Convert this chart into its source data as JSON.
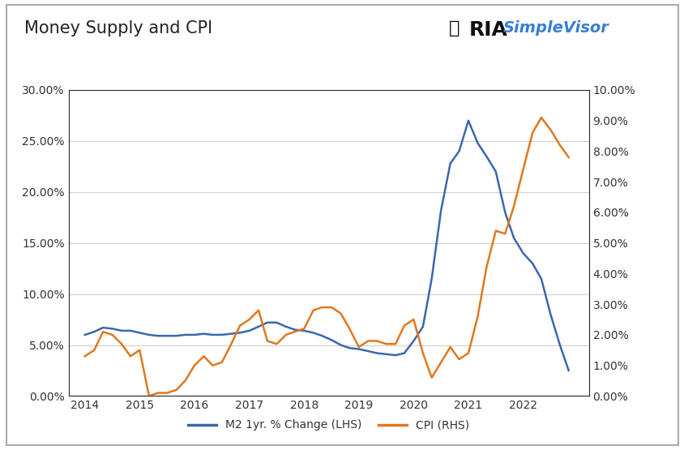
{
  "title": "Money Supply and CPI",
  "background_color": "#ffffff",
  "grid_color": "#d0d0d0",
  "m2_color": "#3a68ae",
  "cpi_color": "#e07820",
  "lhs_ylim": [
    0.0,
    0.3
  ],
  "rhs_ylim": [
    0.0,
    0.1
  ],
  "lhs_yticks": [
    0.0,
    0.05,
    0.1,
    0.15,
    0.2,
    0.25,
    0.3
  ],
  "rhs_yticks": [
    0.0,
    0.01,
    0.02,
    0.03,
    0.04,
    0.05,
    0.06,
    0.07,
    0.08,
    0.09,
    0.1
  ],
  "legend_m2": "M2 1yr. % Change (LHS)",
  "legend_cpi": "CPI (RHS)",
  "xlim": [
    2013.7,
    2023.2
  ],
  "xticks": [
    2014,
    2015,
    2016,
    2017,
    2018,
    2019,
    2020,
    2021,
    2022
  ],
  "m2_x": [
    2014.0,
    2014.17,
    2014.33,
    2014.5,
    2014.67,
    2014.83,
    2015.0,
    2015.17,
    2015.33,
    2015.5,
    2015.67,
    2015.83,
    2016.0,
    2016.17,
    2016.33,
    2016.5,
    2016.67,
    2016.83,
    2017.0,
    2017.17,
    2017.33,
    2017.5,
    2017.67,
    2017.83,
    2018.0,
    2018.17,
    2018.33,
    2018.5,
    2018.67,
    2018.83,
    2019.0,
    2019.17,
    2019.33,
    2019.5,
    2019.67,
    2019.83,
    2020.0,
    2020.17,
    2020.33,
    2020.5,
    2020.67,
    2020.83,
    2021.0,
    2021.17,
    2021.33,
    2021.5,
    2021.67,
    2021.83,
    2022.0,
    2022.17,
    2022.33,
    2022.5,
    2022.67,
    2022.83
  ],
  "m2_y": [
    0.06,
    0.063,
    0.067,
    0.066,
    0.064,
    0.064,
    0.062,
    0.06,
    0.059,
    0.059,
    0.059,
    0.06,
    0.06,
    0.061,
    0.06,
    0.06,
    0.061,
    0.062,
    0.064,
    0.068,
    0.072,
    0.072,
    0.068,
    0.065,
    0.064,
    0.062,
    0.059,
    0.055,
    0.05,
    0.047,
    0.046,
    0.044,
    0.042,
    0.041,
    0.04,
    0.042,
    0.054,
    0.068,
    0.115,
    0.182,
    0.228,
    0.24,
    0.27,
    0.248,
    0.235,
    0.22,
    0.18,
    0.155,
    0.14,
    0.13,
    0.115,
    0.08,
    0.05,
    0.025
  ],
  "cpi_x": [
    2014.0,
    2014.17,
    2014.33,
    2014.5,
    2014.67,
    2014.83,
    2015.0,
    2015.17,
    2015.33,
    2015.5,
    2015.67,
    2015.83,
    2016.0,
    2016.17,
    2016.33,
    2016.5,
    2016.67,
    2016.83,
    2017.0,
    2017.17,
    2017.33,
    2017.5,
    2017.67,
    2017.83,
    2018.0,
    2018.17,
    2018.33,
    2018.5,
    2018.67,
    2018.83,
    2019.0,
    2019.17,
    2019.33,
    2019.5,
    2019.67,
    2019.83,
    2020.0,
    2020.17,
    2020.33,
    2020.5,
    2020.67,
    2020.83,
    2021.0,
    2021.17,
    2021.33,
    2021.5,
    2021.67,
    2021.83,
    2022.0,
    2022.17,
    2022.33,
    2022.5,
    2022.67,
    2022.83
  ],
  "cpi_y": [
    0.013,
    0.015,
    0.021,
    0.02,
    0.017,
    0.013,
    0.015,
    0.0,
    0.001,
    0.001,
    0.002,
    0.005,
    0.01,
    0.013,
    0.01,
    0.011,
    0.017,
    0.023,
    0.025,
    0.028,
    0.018,
    0.017,
    0.02,
    0.021,
    0.022,
    0.028,
    0.029,
    0.029,
    0.027,
    0.022,
    0.016,
    0.018,
    0.018,
    0.017,
    0.017,
    0.023,
    0.025,
    0.014,
    0.006,
    0.011,
    0.016,
    0.012,
    0.014,
    0.026,
    0.042,
    0.054,
    0.053,
    0.062,
    0.074,
    0.086,
    0.091,
    0.087,
    0.082,
    0.078
  ]
}
